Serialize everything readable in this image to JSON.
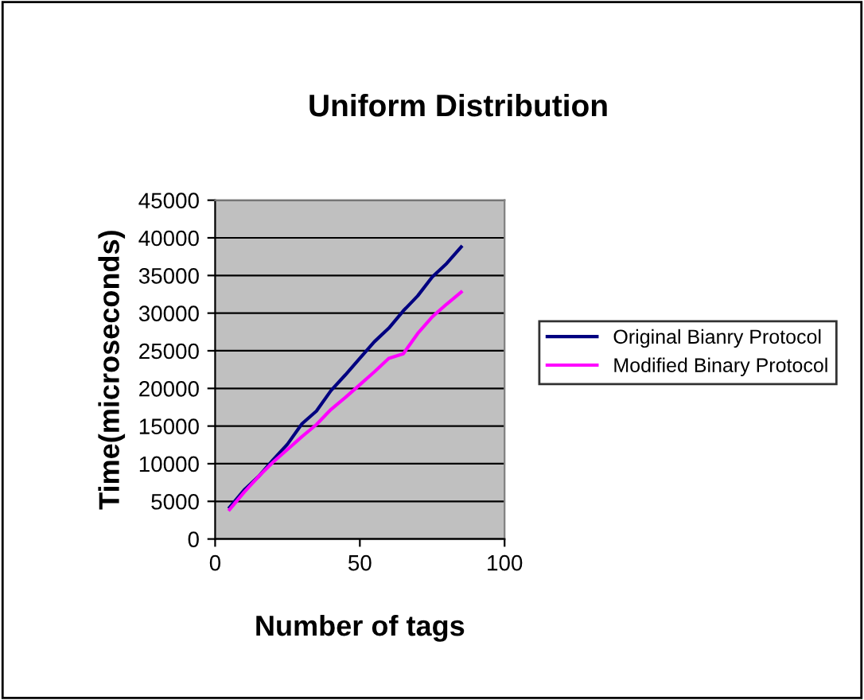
{
  "chart_data": {
    "type": "line",
    "title": "Uniform Distribution",
    "xlabel": "Number of tags",
    "ylabel": "Time(microseconds)",
    "x": [
      5,
      10,
      15,
      20,
      25,
      30,
      35,
      40,
      45,
      50,
      55,
      60,
      65,
      70,
      75,
      80,
      85
    ],
    "series": [
      {
        "name": "Original Bianry Protocol",
        "color": "#000080",
        "values": [
          4200,
          6500,
          8300,
          10500,
          12600,
          15300,
          17000,
          19700,
          21800,
          24000,
          26200,
          28000,
          30300,
          32300,
          34800,
          36600,
          38800
        ]
      },
      {
        "name": "Modified Binary Protocol",
        "color": "#ff00ff",
        "values": [
          3900,
          6200,
          8300,
          10200,
          11900,
          13600,
          15200,
          17200,
          18800,
          20500,
          22200,
          24000,
          24600,
          27300,
          29500,
          31200,
          32800
        ]
      }
    ],
    "xlim": [
      0,
      100
    ],
    "xticks": [
      0,
      50,
      100
    ],
    "ylim": [
      0,
      45000
    ],
    "yticks": [
      0,
      5000,
      10000,
      15000,
      20000,
      25000,
      30000,
      35000,
      40000,
      45000
    ],
    "grid": "y",
    "legend": "right",
    "marker": "none",
    "line_style": "solid"
  }
}
